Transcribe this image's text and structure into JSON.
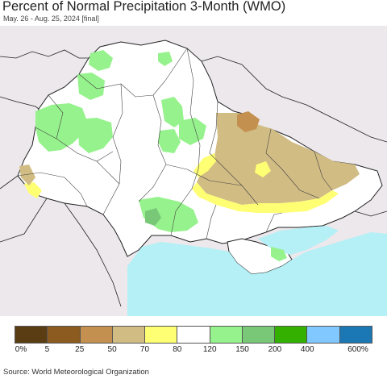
{
  "title": "Percent of Normal Precipitation 3-Month (WMO)",
  "subtitle": "May. 26 - Aug. 25, 2024 [final]",
  "legend": {
    "colors": [
      "#5a3d13",
      "#8b5b20",
      "#c49050",
      "#d1bc84",
      "#ffff73",
      "#ffffff",
      "#96f28c",
      "#78c878",
      "#33b000",
      "#80c8ff",
      "#1c78b4"
    ],
    "labels": [
      "0%",
      "5",
      "25",
      "50",
      "70",
      "80",
      "120",
      "150",
      "200",
      "400",
      "600%"
    ]
  },
  "source": "Source: World Meteorological Organization"
}
